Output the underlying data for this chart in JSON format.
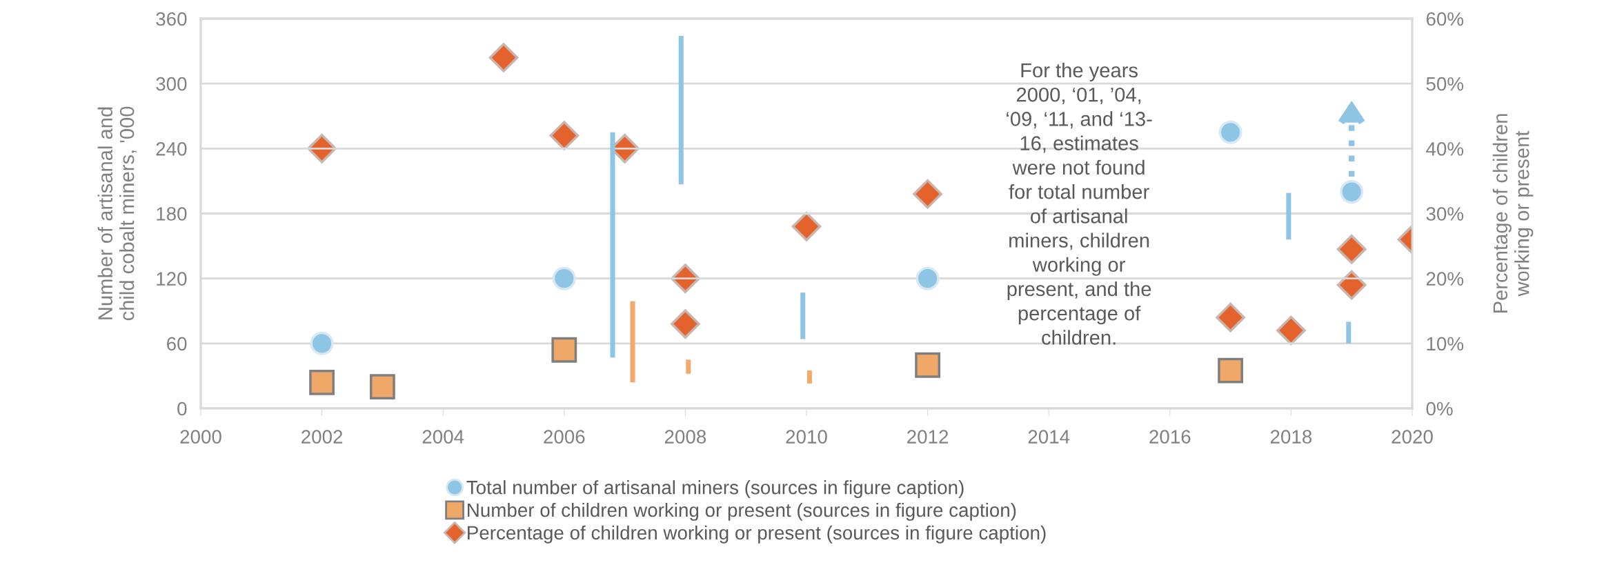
{
  "chart_data": {
    "type": "scatter",
    "ylabel": "Number of artisanal and\nchild cobalt miners, '000",
    "y2label": "Percentage of children\nworking or present",
    "xlim": [
      2000,
      2020
    ],
    "xticks": [
      2000,
      2002,
      2004,
      2006,
      2008,
      2010,
      2012,
      2014,
      2016,
      2018,
      2020
    ],
    "ylim": [
      0,
      360
    ],
    "yticks": [
      0,
      60,
      120,
      180,
      240,
      300,
      360
    ],
    "y2lim": [
      0,
      60
    ],
    "y2ticks": [
      {
        "value": 0,
        "label": "0%"
      },
      {
        "value": 10,
        "label": "10%"
      },
      {
        "value": 20,
        "label": "20%"
      },
      {
        "value": 30,
        "label": "30%"
      },
      {
        "value": 40,
        "label": "40%"
      },
      {
        "value": 50,
        "label": "50%"
      },
      {
        "value": 60,
        "label": "60%"
      }
    ],
    "grid": "y",
    "legend": "bottom",
    "annotations": [
      "For the years\n2000, ‘01, ’04,\n‘09, ‘11, and ‘13-\n16, estimates\nwere not found\nfor total number\nof artisanal\nminers, children\nworking or\npresent, and the\npercentage of\nchildren."
    ],
    "series": [
      {
        "type": "bar",
        "color": "#8ec4e4",
        "x": [
          2006.8,
          2007.93,
          2009.94,
          2017.96,
          2018.95
        ],
        "base": [
          47,
          207,
          64,
          156,
          60
        ],
        "values": [
          208,
          137,
          43,
          43,
          20
        ]
      },
      {
        "type": "bar",
        "color": "#f2a96b",
        "x": [
          2007.13,
          2008.05,
          2010.05
        ],
        "base": [
          24,
          32,
          23
        ],
        "values": [
          75,
          13,
          12
        ]
      },
      {
        "name": "Total number of artisanal miners (sources in figure caption)",
        "color": "#8ec4e4",
        "marker": "circle",
        "line_style": "dotted",
        "x": [
          2002,
          2006,
          2012,
          2017,
          2019
        ],
        "values": [
          60,
          120,
          120,
          255,
          200
        ],
        "errors": [
          null,
          null,
          null,
          null,
          [
            200,
            264
          ]
        ]
      },
      {
        "name": "Number of children working or present (sources in figure caption)",
        "color": "#f0a868",
        "marker": "square",
        "x": [
          2002,
          2003,
          2006,
          2012,
          2017
        ],
        "values": [
          24,
          20,
          54,
          40,
          35
        ]
      },
      {
        "name": "Percentage of children working or present (sources in figure caption)",
        "color": "#e4622b",
        "marker": "diamond",
        "axis": "y2",
        "x": [
          2002,
          2005,
          2006,
          2007,
          2008,
          2008,
          2010,
          2012,
          2017,
          2018,
          2019,
          2019,
          2020
        ],
        "values": [
          40,
          54,
          42,
          40,
          20,
          13,
          28,
          33,
          14,
          12,
          24.5,
          19,
          26
        ]
      }
    ]
  }
}
